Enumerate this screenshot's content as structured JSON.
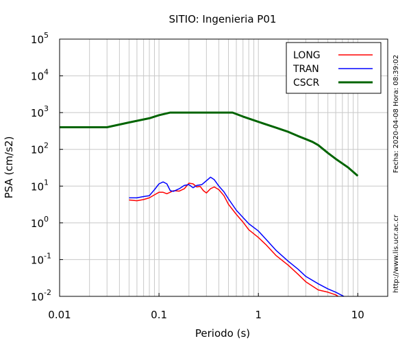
{
  "chart_data": {
    "type": "line",
    "title": "SITIO: Ingenieria P01",
    "xlabel": "Periodo (s)",
    "ylabel": "PSA (cm/s2)",
    "x_scale": "log",
    "y_scale": "log",
    "xlim": [
      0.01,
      20
    ],
    "ylim": [
      0.01,
      100000
    ],
    "grid": true,
    "legend_position": "top-right",
    "x_ticks": [
      {
        "value": 0.01,
        "label": "0.01"
      },
      {
        "value": 0.1,
        "label": "0.1"
      },
      {
        "value": 1,
        "label": "1"
      },
      {
        "value": 10,
        "label": "10"
      }
    ],
    "y_ticks": [
      {
        "value": 0.01,
        "mantissa": "10",
        "exp": "-2"
      },
      {
        "value": 0.1,
        "mantissa": "10",
        "exp": "-1"
      },
      {
        "value": 1,
        "mantissa": "10",
        "exp": "0"
      },
      {
        "value": 10,
        "mantissa": "10",
        "exp": "1"
      },
      {
        "value": 100,
        "mantissa": "10",
        "exp": "2"
      },
      {
        "value": 1000,
        "mantissa": "10",
        "exp": "3"
      },
      {
        "value": 10000,
        "mantissa": "10",
        "exp": "4"
      },
      {
        "value": 100000,
        "mantissa": "10",
        "exp": "5"
      }
    ],
    "series": [
      {
        "name": "LONG",
        "color": "#ff0000",
        "x": [
          0.05,
          0.06,
          0.07,
          0.08,
          0.09,
          0.1,
          0.11,
          0.12,
          0.14,
          0.16,
          0.18,
          0.2,
          0.22,
          0.24,
          0.26,
          0.28,
          0.3,
          0.33,
          0.36,
          0.4,
          0.45,
          0.5,
          0.6,
          0.7,
          0.8,
          1.0,
          1.2,
          1.5,
          2.0,
          2.5,
          3.0,
          4.0,
          5.0,
          6.0,
          7.0
        ],
        "y": [
          4.2,
          4.0,
          4.3,
          4.8,
          5.8,
          6.8,
          6.8,
          6.2,
          7.5,
          7.3,
          8.5,
          12.0,
          11.5,
          9.5,
          9.8,
          7.5,
          6.5,
          8.5,
          9.5,
          8.0,
          5.5,
          3.2,
          1.7,
          1.05,
          0.65,
          0.4,
          0.25,
          0.13,
          0.07,
          0.04,
          0.025,
          0.015,
          0.013,
          0.011,
          0.0085
        ]
      },
      {
        "name": "TRAN",
        "color": "#0000ff",
        "x": [
          0.05,
          0.06,
          0.07,
          0.08,
          0.09,
          0.1,
          0.11,
          0.12,
          0.13,
          0.14,
          0.16,
          0.18,
          0.2,
          0.22,
          0.24,
          0.27,
          0.3,
          0.33,
          0.36,
          0.4,
          0.45,
          0.5,
          0.6,
          0.7,
          0.8,
          1.0,
          1.2,
          1.5,
          2.0,
          2.5,
          3.0,
          4.0,
          5.0,
          6.0,
          7.0,
          7.5
        ],
        "y": [
          4.8,
          4.8,
          5.2,
          5.5,
          8.0,
          11.5,
          13.0,
          11.5,
          7.5,
          7.2,
          8.5,
          10.5,
          11.0,
          9.0,
          10.5,
          11.0,
          14.0,
          17.5,
          15.0,
          10.0,
          7.0,
          4.5,
          2.2,
          1.4,
          0.95,
          0.6,
          0.35,
          0.18,
          0.09,
          0.055,
          0.035,
          0.022,
          0.016,
          0.013,
          0.0105,
          0.0095
        ]
      },
      {
        "name": "CSCR",
        "color": "#006400",
        "x": [
          0.01,
          0.03,
          0.05,
          0.08,
          0.1,
          0.13,
          0.2,
          0.3,
          0.55,
          0.7,
          1.0,
          1.5,
          2.0,
          2.5,
          3.0,
          3.5,
          4.0,
          5.0,
          6.0,
          8.0,
          10.0
        ],
        "y": [
          400,
          400,
          540,
          700,
          850,
          1000,
          1000,
          1000,
          1000,
          780,
          560,
          390,
          300,
          230,
          190,
          160,
          130,
          80,
          55,
          32,
          19
        ]
      }
    ],
    "annotations": [
      "Fecha: 2020-04-08  Hora: 08:39:02",
      "http://www.lis.ucr.ac.cr"
    ]
  }
}
